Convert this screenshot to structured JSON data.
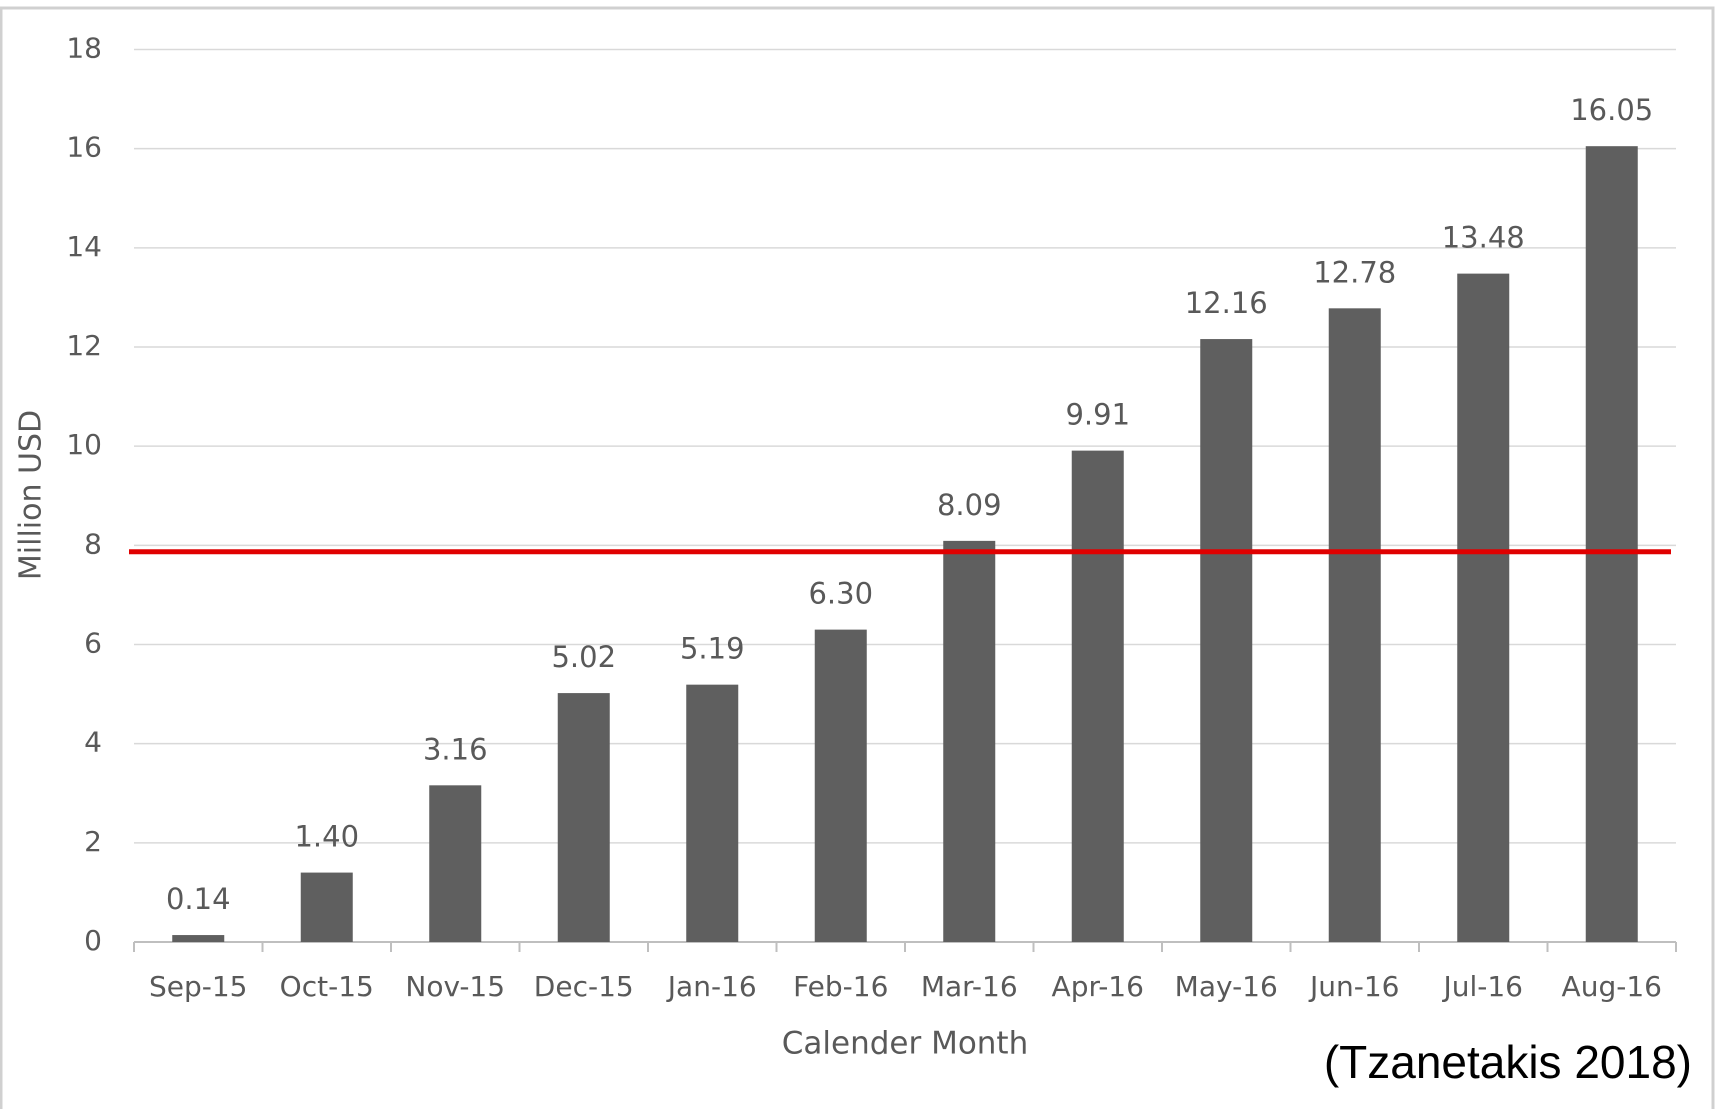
{
  "chart_data": {
    "type": "bar",
    "y_axis_label": "Million USD",
    "x_axis_label": "Calender Month",
    "annotation": "(Tzanetakis 2018)",
    "categories": [
      "Sep-15",
      "Oct-15",
      "Nov-15",
      "Dec-15",
      "Jan-16",
      "Feb-16",
      "Mar-16",
      "Apr-16",
      "May-16",
      "Jun-16",
      "Jul-16",
      "Aug-16"
    ],
    "values": [
      0.14,
      1.4,
      3.16,
      5.02,
      5.19,
      6.3,
      8.09,
      9.91,
      12.16,
      12.78,
      13.48,
      16.05
    ],
    "value_labels": [
      "0.14",
      "1.40",
      "3.16",
      "5.02",
      "5.19",
      "6.30",
      "8.09",
      "9.91",
      "12.16",
      "12.78",
      "13.48",
      "16.05"
    ],
    "color": "#5f5f5f",
    "ylim": [
      0,
      18
    ],
    "yticks": [
      0,
      2,
      4,
      6,
      8,
      10,
      12,
      14,
      16,
      18
    ],
    "grid": true,
    "reference_line": {
      "value": 7.87,
      "color": "#e00000"
    }
  }
}
